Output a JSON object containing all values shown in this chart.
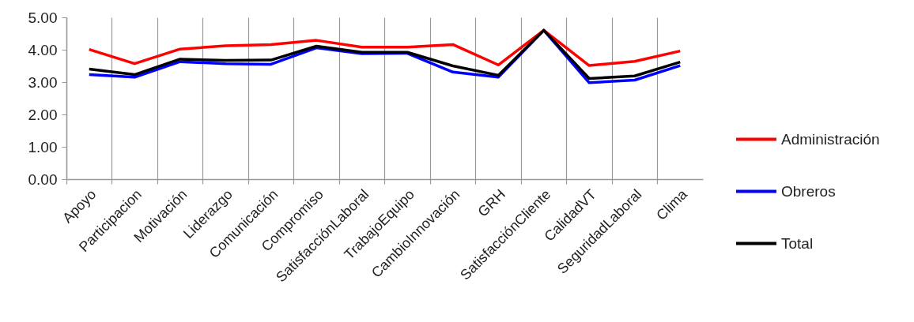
{
  "chart_data": {
    "type": "line",
    "categories": [
      "Apoyo",
      "Participacion",
      "Motivación",
      "Liderazgo",
      "Comunicación",
      "Compromiso",
      "SatisfacciónLaboral",
      "TrabajoEquipo",
      "CambioInnovación",
      "GRH",
      "SatisfacciónCliente",
      "CalidadVT",
      "SeguridadLaboral",
      "Clima"
    ],
    "series": [
      {
        "name": "Administración",
        "color": "#ff0000",
        "values": [
          4.01,
          3.57,
          4.02,
          4.12,
          4.16,
          4.29,
          4.08,
          4.08,
          4.16,
          3.53,
          4.6,
          3.51,
          3.64,
          3.96
        ]
      },
      {
        "name": "Obreros",
        "color": "#0000ff",
        "values": [
          3.23,
          3.15,
          3.63,
          3.57,
          3.55,
          4.06,
          3.88,
          3.89,
          3.31,
          3.15,
          4.6,
          2.98,
          3.06,
          3.51
        ]
      },
      {
        "name": "Total",
        "color": "#000000",
        "values": [
          3.4,
          3.23,
          3.71,
          3.67,
          3.68,
          4.11,
          3.92,
          3.92,
          3.5,
          3.21,
          4.6,
          3.11,
          3.19,
          3.62
        ]
      }
    ],
    "ylim": [
      0,
      5
    ],
    "yticks": [
      {
        "value": 0,
        "label": "0.00"
      },
      {
        "value": 1,
        "label": "1.00"
      },
      {
        "value": 2,
        "label": "2.00"
      },
      {
        "value": 3,
        "label": "3.00"
      },
      {
        "value": 4,
        "label": "4.00"
      },
      {
        "value": 5,
        "label": "5.00"
      }
    ],
    "grid": "x",
    "legend": "right",
    "marker": "none",
    "line_style": "solid"
  }
}
